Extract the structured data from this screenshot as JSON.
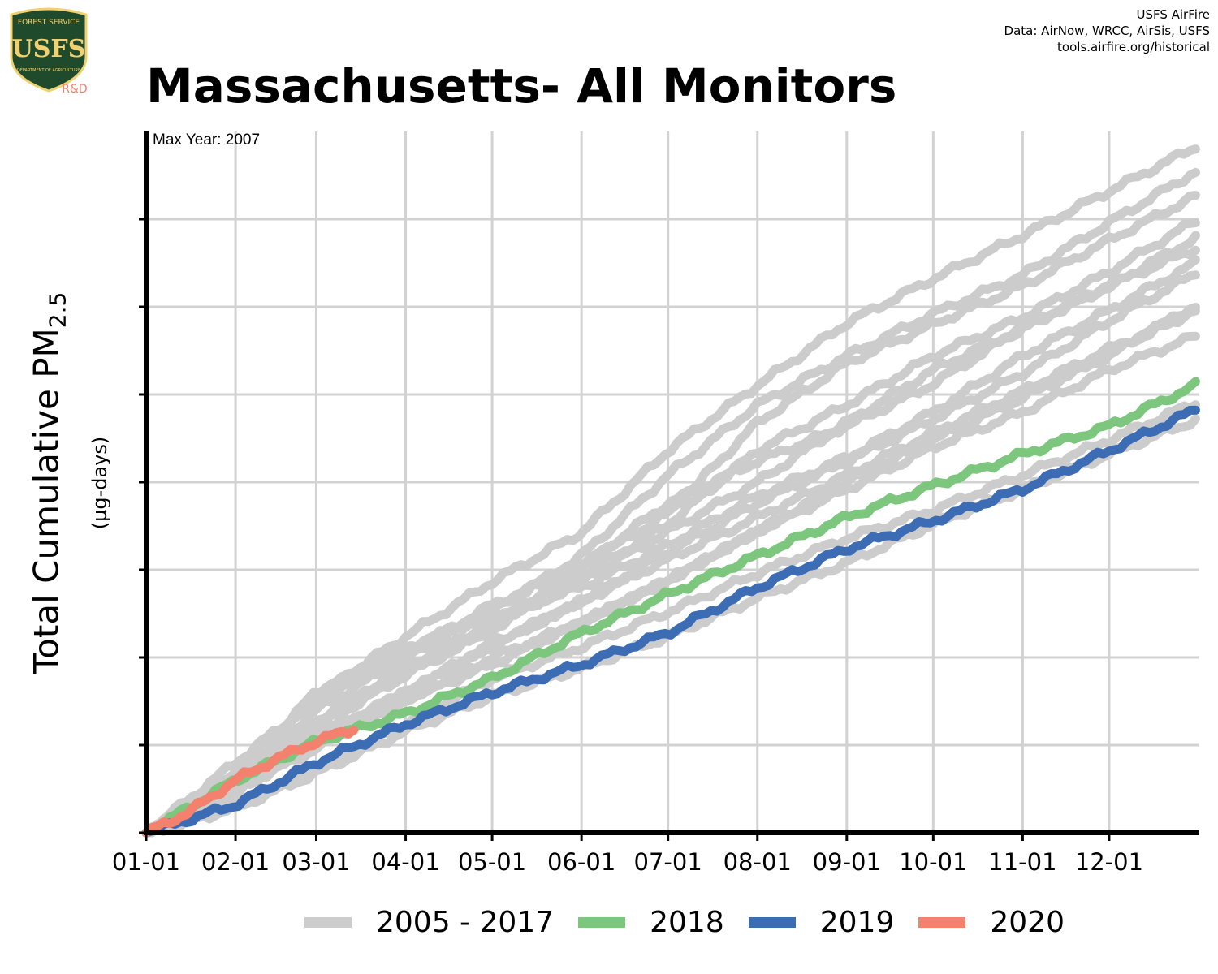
{
  "logo": {
    "top_text": "FOREST SERVICE",
    "letters": "USFS",
    "bottom_text": "DEPARTMENT OF AGRICULTURE",
    "rd_text": "R&D",
    "colors": {
      "shield": "#1f4a2c",
      "border": "#f0d070",
      "rd": "#f08070"
    }
  },
  "credits": {
    "line1": "USFS AirFire",
    "line2": "Data: AirNow, WRCC, AirSis, USFS",
    "line3": "tools.airfire.org/historical"
  },
  "chart_data": {
    "type": "line",
    "title": "Massachusetts- All Monitors",
    "annotation": "Max Year: 2007",
    "ylabel_main": "Total Cumulative PM",
    "ylabel_sub": "2.5",
    "ylabel_units": "(µg-days)",
    "x_tick_labels": [
      "01-01",
      "02-01",
      "03-01",
      "04-01",
      "05-01",
      "06-01",
      "07-01",
      "08-01",
      "09-01",
      "10-01",
      "11-01",
      "12-01"
    ],
    "x_tick_days": [
      0,
      31,
      59,
      90,
      120,
      151,
      181,
      212,
      243,
      273,
      304,
      334
    ],
    "xlim": [
      0,
      365
    ],
    "ylim": [
      0,
      1
    ],
    "y_ticks": [
      0.125,
      0.25,
      0.375,
      0.5,
      0.625,
      0.75,
      0.875
    ],
    "y_tick_labels_shown": false,
    "grid": true,
    "legend_position": "bottom",
    "colors": {
      "historical": "#cccccc",
      "2018": "#7dc67e",
      "2019": "#3b6cb4",
      "2020": "#f4806e",
      "grid": "#d2d2d2"
    },
    "series": [
      {
        "name": "2005 - 2017",
        "group": "historical",
        "x": [
          0,
          31,
          59,
          90,
          120,
          151,
          181,
          212,
          243,
          273,
          304,
          334,
          365
        ],
        "y": [
          0,
          0.065,
          0.195,
          0.28,
          0.358,
          0.428,
          0.545,
          0.638,
          0.727,
          0.79,
          0.852,
          0.915,
          0.98
        ]
      },
      {
        "name": "2005 - 2017",
        "group": "historical",
        "x": [
          0,
          31,
          59,
          90,
          120,
          151,
          181,
          212,
          243,
          273,
          304,
          334,
          365
        ],
        "y": [
          0,
          0.08,
          0.175,
          0.25,
          0.315,
          0.395,
          0.51,
          0.61,
          0.68,
          0.74,
          0.795,
          0.87,
          0.945
        ]
      },
      {
        "name": "2005 - 2017",
        "group": "historical",
        "x": [
          0,
          31,
          59,
          90,
          120,
          151,
          181,
          212,
          243,
          273,
          304,
          334,
          365
        ],
        "y": [
          0,
          0.1,
          0.19,
          0.255,
          0.325,
          0.38,
          0.455,
          0.585,
          0.67,
          0.725,
          0.78,
          0.845,
          0.91
        ]
      },
      {
        "name": "2005 - 2017",
        "group": "historical",
        "x": [
          0,
          31,
          59,
          90,
          120,
          151,
          181,
          212,
          243,
          273,
          304,
          334,
          365
        ],
        "y": [
          0,
          0.07,
          0.16,
          0.23,
          0.29,
          0.365,
          0.44,
          0.545,
          0.61,
          0.68,
          0.735,
          0.8,
          0.875
        ]
      },
      {
        "name": "2005 - 2017",
        "group": "historical",
        "x": [
          0,
          31,
          59,
          90,
          120,
          151,
          181,
          212,
          243,
          273,
          304,
          334,
          365
        ],
        "y": [
          0,
          0.06,
          0.15,
          0.225,
          0.29,
          0.38,
          0.47,
          0.53,
          0.58,
          0.64,
          0.72,
          0.78,
          0.835
        ]
      },
      {
        "name": "2005 - 2017",
        "group": "historical",
        "x": [
          0,
          31,
          59,
          90,
          120,
          151,
          181,
          212,
          243,
          273,
          304,
          334,
          365
        ],
        "y": [
          0,
          0.075,
          0.155,
          0.235,
          0.3,
          0.36,
          0.43,
          0.5,
          0.585,
          0.66,
          0.72,
          0.78,
          0.85
        ]
      },
      {
        "name": "2005 - 2017",
        "group": "historical",
        "x": [
          0,
          31,
          59,
          90,
          120,
          151,
          181,
          212,
          243,
          273,
          304,
          334,
          365
        ],
        "y": [
          0,
          0.085,
          0.2,
          0.265,
          0.31,
          0.35,
          0.41,
          0.48,
          0.535,
          0.6,
          0.68,
          0.745,
          0.815
        ]
      },
      {
        "name": "2005 - 2017",
        "group": "historical",
        "x": [
          0,
          31,
          59,
          90,
          120,
          151,
          181,
          212,
          243,
          273,
          304,
          334,
          365
        ],
        "y": [
          0,
          0.055,
          0.14,
          0.2,
          0.265,
          0.33,
          0.4,
          0.47,
          0.53,
          0.59,
          0.655,
          0.73,
          0.8
        ]
      },
      {
        "name": "2005 - 2017",
        "group": "historical",
        "x": [
          0,
          31,
          59,
          90,
          120,
          151,
          181,
          212,
          243,
          273,
          304,
          334,
          365
        ],
        "y": [
          0,
          0.06,
          0.12,
          0.19,
          0.25,
          0.3,
          0.36,
          0.43,
          0.5,
          0.56,
          0.62,
          0.68,
          0.755
        ]
      },
      {
        "name": "2005 - 2017",
        "group": "historical",
        "x": [
          0,
          31,
          59,
          90,
          120,
          151,
          181,
          212,
          243,
          273,
          304,
          334,
          365
        ],
        "y": [
          0,
          0.07,
          0.13,
          0.2,
          0.27,
          0.33,
          0.39,
          0.45,
          0.51,
          0.57,
          0.63,
          0.69,
          0.745
        ]
      },
      {
        "name": "2005 - 2017",
        "group": "historical",
        "x": [
          0,
          31,
          59,
          90,
          120,
          151,
          181,
          212,
          243,
          273,
          304,
          334,
          365
        ],
        "y": [
          0,
          0.065,
          0.13,
          0.19,
          0.24,
          0.3,
          0.36,
          0.43,
          0.49,
          0.55,
          0.6,
          0.66,
          0.71
        ]
      },
      {
        "name": "2005 - 2017",
        "group": "historical",
        "x": [
          0,
          31,
          59,
          90,
          120,
          151,
          181,
          212,
          243,
          273,
          304,
          334,
          365
        ],
        "y": [
          0,
          0.04,
          0.09,
          0.155,
          0.22,
          0.265,
          0.315,
          0.37,
          0.42,
          0.46,
          0.51,
          0.56,
          0.615
        ]
      },
      {
        "name": "2005 - 2017",
        "group": "historical",
        "x": [
          0,
          31,
          59,
          90,
          120,
          151,
          181,
          212,
          243,
          273,
          304,
          334,
          365
        ],
        "y": [
          0,
          0.035,
          0.085,
          0.145,
          0.195,
          0.235,
          0.28,
          0.335,
          0.385,
          0.44,
          0.49,
          0.54,
          0.59
        ]
      },
      {
        "name": "2018",
        "group": "2018",
        "x": [
          0,
          31,
          59,
          90,
          120,
          151,
          181,
          212,
          243,
          273,
          304,
          334,
          365
        ],
        "y": [
          0,
          0.075,
          0.13,
          0.17,
          0.22,
          0.285,
          0.34,
          0.395,
          0.45,
          0.495,
          0.54,
          0.58,
          0.64
        ]
      },
      {
        "name": "2019",
        "group": "2019",
        "x": [
          0,
          31,
          59,
          90,
          120,
          151,
          181,
          212,
          243,
          273,
          304,
          334,
          365
        ],
        "y": [
          0,
          0.04,
          0.1,
          0.155,
          0.2,
          0.24,
          0.285,
          0.35,
          0.405,
          0.445,
          0.49,
          0.545,
          0.605
        ]
      },
      {
        "name": "2020",
        "group": "2020",
        "x": [
          0,
          15,
          31,
          45,
          59,
          73
        ],
        "y": [
          0,
          0.03,
          0.075,
          0.105,
          0.13,
          0.15
        ]
      }
    ],
    "legend": [
      {
        "label": "2005 - 2017",
        "color": "#cccccc"
      },
      {
        "label": "2018",
        "color": "#7dc67e"
      },
      {
        "label": "2019",
        "color": "#3b6cb4"
      },
      {
        "label": "2020",
        "color": "#f4806e"
      }
    ]
  }
}
